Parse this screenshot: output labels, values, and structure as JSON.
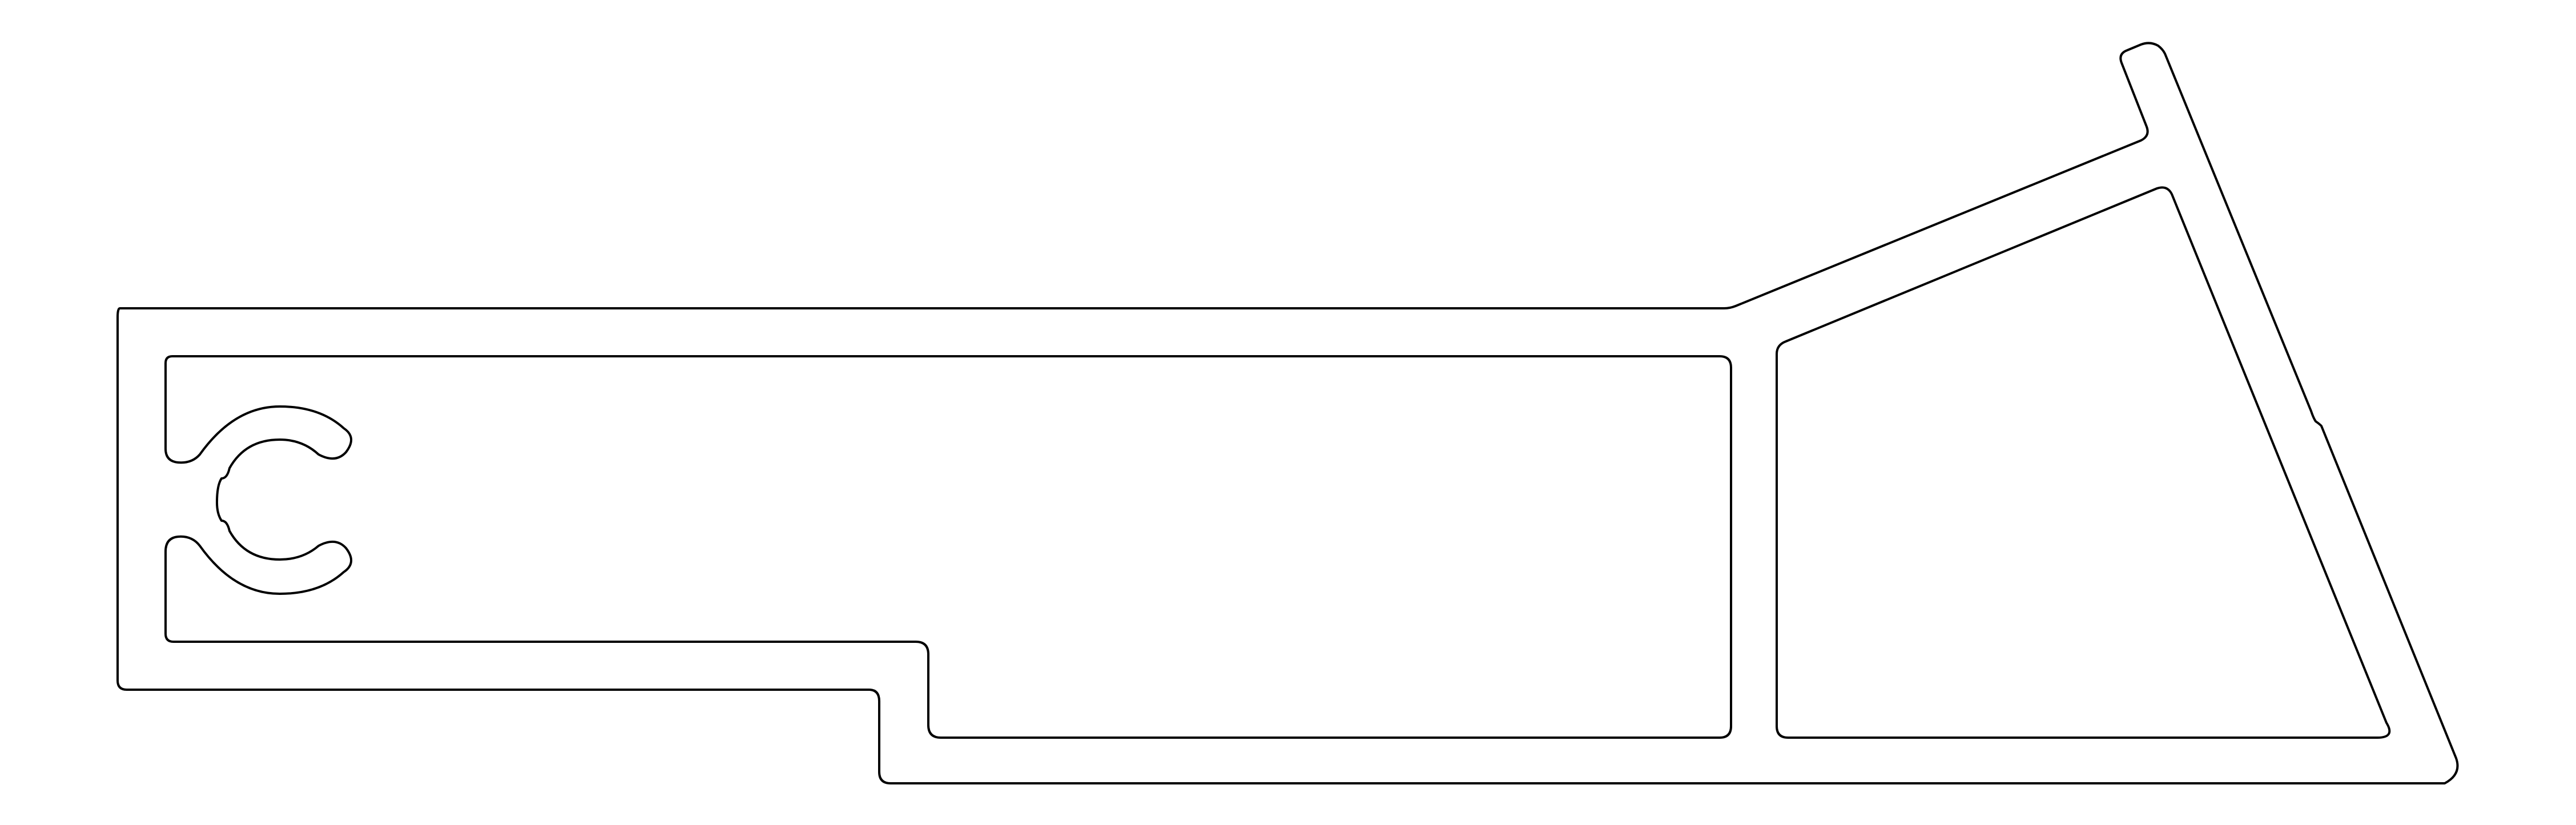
{
  "drawing": {
    "kind": "aluminium extrusion profile cross-section",
    "line_color": "#000000",
    "background_color": "#ffffff",
    "features": [
      "outer-contour",
      "left-hollow-chamber",
      "right-triangular-chamber",
      "screw-port-upper-arc",
      "screw-port-lower-arc",
      "screw-port-inner-hole",
      "top-right-lip"
    ]
  }
}
